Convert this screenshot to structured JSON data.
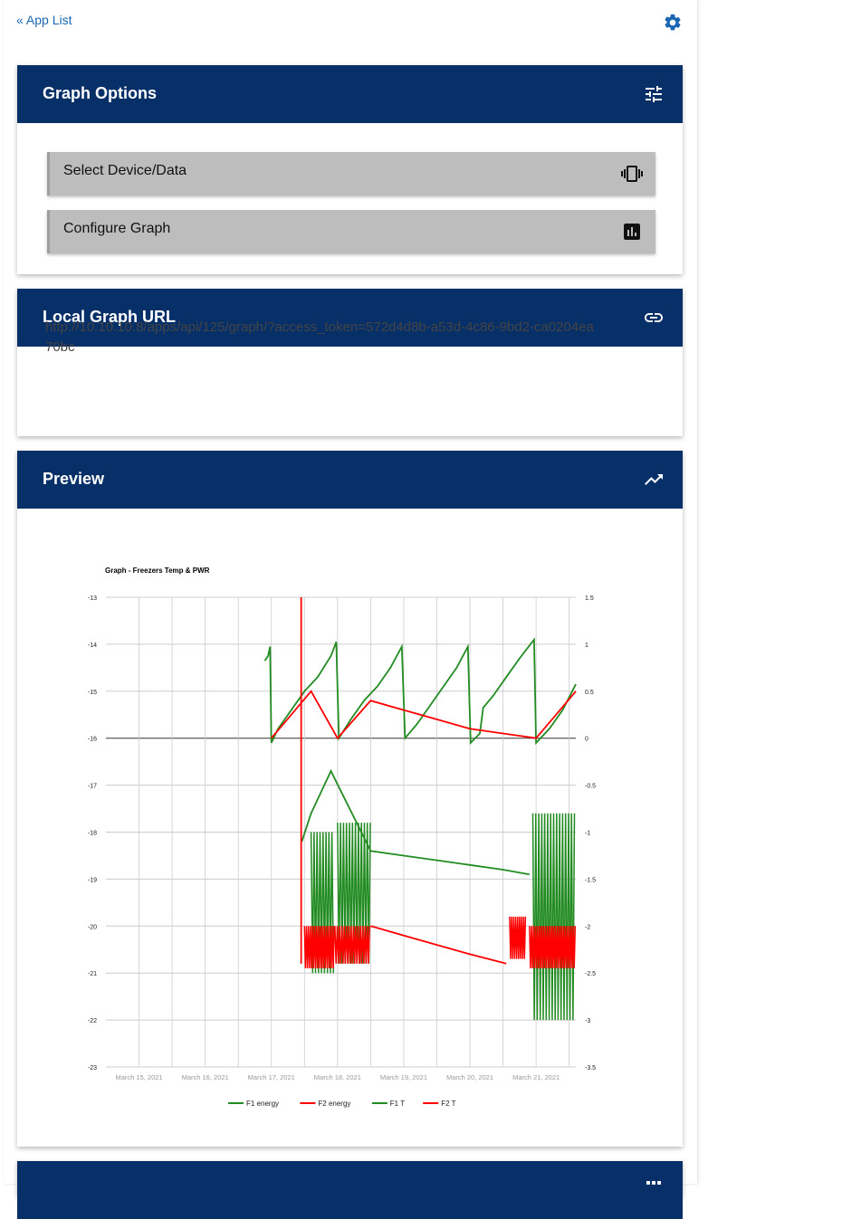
{
  "topbar": {
    "back_label": "« App List",
    "settings_icon": "gear-icon"
  },
  "graph_options": {
    "title": "Graph Options",
    "icon": "tune-icon",
    "buttons": [
      {
        "label": "Select Device/Data",
        "icon": "vibration-phone-icon"
      },
      {
        "label": "Configure Graph",
        "icon": "bar-chart-icon"
      }
    ]
  },
  "local_url": {
    "title": "Local Graph URL",
    "icon": "link-icon",
    "url": "http://10.10.10.8/apps/api/125/graph/?access_token=572d4d8b-a53d-4c86-9bd2-ca0204ea70bc"
  },
  "preview": {
    "title": "Preview",
    "icon": "trending-icon"
  },
  "next_card": {
    "icon": "grid-icon"
  },
  "colors": {
    "header_bg": "#072f68",
    "link": "#1a66b3",
    "button_bg": "#bdbdbd",
    "f1": "#228b22",
    "f2": "#ff0000"
  },
  "chart_data": {
    "type": "line",
    "title": "Graph - Freezers Temp & PWR",
    "xlabel": "",
    "ylabel": "",
    "x_ticks": [
      "March 15, 2021",
      "March 16, 2021",
      "March 17, 2021",
      "March 18, 2021",
      "March 19, 2021",
      "March 20, 2021",
      "March 21, 2021"
    ],
    "ylim_left": [
      -23,
      -13
    ],
    "ylim_right": [
      -3.5,
      1.5
    ],
    "y_ticks_left": [
      "-13",
      "-14",
      "-15",
      "-16",
      "-17",
      "-18",
      "-19",
      "-20",
      "-21",
      "-22",
      "-23"
    ],
    "y_ticks_right": [
      "1.5",
      "1",
      "0.5",
      "0",
      "-0.5",
      "-1",
      "-1.5",
      "-2",
      "-2.5",
      "-3",
      "-3.5"
    ],
    "xlim": [
      14.5,
      21.6
    ],
    "grid": true,
    "legend": "bottom",
    "series": [
      {
        "name": "F1 energy",
        "color": "#228b22",
        "axis": "left",
        "points": [
          [
            16.9,
            -14.35
          ],
          [
            16.95,
            -14.25
          ],
          [
            16.98,
            -14.05
          ],
          [
            17.0,
            -16.1
          ],
          [
            17.1,
            -15.8
          ],
          [
            17.3,
            -15.4
          ],
          [
            17.5,
            -15.0
          ],
          [
            17.7,
            -14.7
          ],
          [
            17.9,
            -14.25
          ],
          [
            17.98,
            -13.95
          ],
          [
            18.02,
            -16.0
          ],
          [
            18.2,
            -15.6
          ],
          [
            18.4,
            -15.2
          ],
          [
            18.6,
            -14.9
          ],
          [
            18.8,
            -14.5
          ],
          [
            18.97,
            -14.05
          ],
          [
            19.02,
            -16.0
          ],
          [
            19.2,
            -15.7
          ],
          [
            19.4,
            -15.3
          ],
          [
            19.6,
            -14.9
          ],
          [
            19.8,
            -14.5
          ],
          [
            19.97,
            -14.05
          ],
          [
            20.01,
            -16.1
          ],
          [
            20.15,
            -15.9
          ],
          [
            20.2,
            -15.35
          ],
          [
            20.35,
            -15.1
          ],
          [
            20.55,
            -14.7
          ],
          [
            20.75,
            -14.3
          ],
          [
            20.97,
            -13.9
          ],
          [
            21.0,
            -16.1
          ],
          [
            21.2,
            -15.8
          ],
          [
            21.4,
            -15.4
          ],
          [
            21.6,
            -14.85
          ]
        ]
      },
      {
        "name": "F2 energy",
        "color": "#ff0000",
        "axis": "left",
        "points": [
          [
            17.0,
            -16.0
          ],
          [
            17.3,
            -15.5
          ],
          [
            17.6,
            -15.0
          ],
          [
            18.0,
            -16.0
          ],
          [
            18.5,
            -15.2
          ],
          [
            19.0,
            -15.4
          ],
          [
            19.5,
            -15.6
          ],
          [
            20.0,
            -15.8
          ],
          [
            20.5,
            -15.9
          ],
          [
            21.0,
            -16.0
          ],
          [
            21.3,
            -15.5
          ],
          [
            21.6,
            -15.0
          ]
        ]
      },
      {
        "name": "F1 T",
        "color": "#228b22",
        "axis": "right",
        "points": [
          [
            17.46,
            -1.1
          ],
          [
            17.6,
            -0.8
          ],
          [
            17.8,
            -0.5
          ],
          [
            17.9,
            -0.35
          ],
          [
            18.5,
            -1.2
          ],
          [
            19.0,
            -1.25
          ],
          [
            19.5,
            -1.3
          ],
          [
            20.0,
            -1.35
          ],
          [
            20.5,
            -1.4
          ],
          [
            20.9,
            -1.45
          ]
        ],
        "oscillations": [
          {
            "x0": 17.6,
            "x1": 17.96,
            "hi": -1.0,
            "lo": -2.5,
            "period": 0.045
          },
          {
            "x0": 18.0,
            "x1": 18.5,
            "hi": -0.9,
            "lo": -2.4,
            "period": 0.045
          },
          {
            "x0": 20.95,
            "x1": 21.6,
            "hi": -0.8,
            "lo": -3.0,
            "period": 0.045
          }
        ]
      },
      {
        "name": "F2 T",
        "color": "#ff0000",
        "axis": "right",
        "points": [
          [
            18.5,
            -2.0
          ],
          [
            19.0,
            -2.1
          ],
          [
            19.5,
            -2.2
          ],
          [
            20.0,
            -2.3
          ],
          [
            20.55,
            -2.4
          ]
        ],
        "oscillations": [
          {
            "x0": 17.5,
            "x1": 17.96,
            "hi": -2.0,
            "lo": -2.45,
            "period": 0.03
          },
          {
            "x0": 17.96,
            "x1": 18.5,
            "hi": -2.0,
            "lo": -2.4,
            "period": 0.035
          },
          {
            "x0": 20.6,
            "x1": 20.85,
            "hi": -1.9,
            "lo": -2.35,
            "period": 0.03
          },
          {
            "x0": 20.9,
            "x1": 21.6,
            "hi": -2.0,
            "lo": -2.45,
            "period": 0.03
          }
        ]
      }
    ],
    "spike": {
      "x": 17.45,
      "top": 1.5,
      "bottom": -2.4,
      "color": "#ff0000",
      "axis": "right"
    }
  }
}
